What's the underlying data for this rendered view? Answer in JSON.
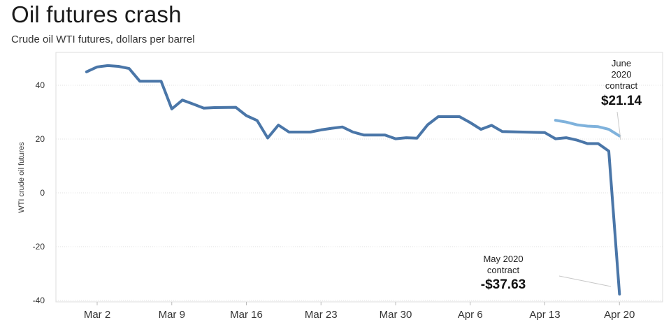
{
  "chart_data": {
    "type": "line",
    "title": "Oil futures crash",
    "subtitle": "Crude oil WTI futures, dollars per barrel",
    "ylabel": "WTI crude oil futures",
    "xlabel": "",
    "ylim": [
      -42,
      50
    ],
    "yticks": [
      40,
      20,
      0,
      -20,
      -40
    ],
    "grid": true,
    "legend": "none",
    "x_ticks": [
      {
        "label": "Mar 2",
        "day": 0
      },
      {
        "label": "Mar 9",
        "day": 7
      },
      {
        "label": "Mar 16",
        "day": 14
      },
      {
        "label": "Mar 23",
        "day": 21
      },
      {
        "label": "Mar 30",
        "day": 28
      },
      {
        "label": "Apr 6",
        "day": 35
      },
      {
        "label": "Apr 13",
        "day": 42
      },
      {
        "label": "Apr 20",
        "day": 49
      }
    ],
    "series": [
      {
        "name": "May 2020 contract",
        "color": "#4a76a8",
        "points": [
          {
            "x": "Mar 1",
            "y": 45.0
          },
          {
            "x": "Mar 2",
            "y": 46.8
          },
          {
            "x": "Mar 3",
            "y": 47.3
          },
          {
            "x": "Mar 4",
            "y": 47.0
          },
          {
            "x": "Mar 5",
            "y": 46.2
          },
          {
            "x": "Mar 6",
            "y": 41.5
          },
          {
            "x": "Mar 8",
            "y": 41.5
          },
          {
            "x": "Mar 9",
            "y": 31.2
          },
          {
            "x": "Mar 10",
            "y": 34.5
          },
          {
            "x": "Mar 11",
            "y": 33.0
          },
          {
            "x": "Mar 12",
            "y": 31.5
          },
          {
            "x": "Mar 13",
            "y": 31.7
          },
          {
            "x": "Mar 15",
            "y": 31.8
          },
          {
            "x": "Mar 16",
            "y": 28.7
          },
          {
            "x": "Mar 17",
            "y": 26.9
          },
          {
            "x": "Mar 18",
            "y": 20.4
          },
          {
            "x": "Mar 19",
            "y": 25.2
          },
          {
            "x": "Mar 20",
            "y": 22.6
          },
          {
            "x": "Mar 22",
            "y": 22.6
          },
          {
            "x": "Mar 23",
            "y": 23.4
          },
          {
            "x": "Mar 24",
            "y": 24.0
          },
          {
            "x": "Mar 25",
            "y": 24.5
          },
          {
            "x": "Mar 26",
            "y": 22.6
          },
          {
            "x": "Mar 27",
            "y": 21.5
          },
          {
            "x": "Mar 29",
            "y": 21.5
          },
          {
            "x": "Mar 30",
            "y": 20.1
          },
          {
            "x": "Mar 31",
            "y": 20.5
          },
          {
            "x": "Apr 1",
            "y": 20.3
          },
          {
            "x": "Apr 2",
            "y": 25.3
          },
          {
            "x": "Apr 3",
            "y": 28.3
          },
          {
            "x": "Apr 5",
            "y": 28.3
          },
          {
            "x": "Apr 6",
            "y": 26.1
          },
          {
            "x": "Apr 7",
            "y": 23.6
          },
          {
            "x": "Apr 8",
            "y": 25.1
          },
          {
            "x": "Apr 9",
            "y": 22.8
          },
          {
            "x": "Apr 13",
            "y": 22.4
          },
          {
            "x": "Apr 14",
            "y": 20.1
          },
          {
            "x": "Apr 15",
            "y": 20.5
          },
          {
            "x": "Apr 16",
            "y": 19.6
          },
          {
            "x": "Apr 17",
            "y": 18.3
          },
          {
            "x": "Apr 18",
            "y": 18.3
          },
          {
            "x": "Apr 19",
            "y": 15.5
          },
          {
            "x": "Apr 20",
            "y": -37.63
          }
        ]
      },
      {
        "name": "June 2020 contract",
        "color": "#7fb2dc",
        "points": [
          {
            "x": "Apr 14",
            "y": 27.0
          },
          {
            "x": "Apr 15",
            "y": 26.3
          },
          {
            "x": "Apr 16",
            "y": 25.3
          },
          {
            "x": "Apr 17",
            "y": 24.8
          },
          {
            "x": "Apr 18",
            "y": 24.6
          },
          {
            "x": "Apr 19",
            "y": 23.6
          },
          {
            "x": "Apr 20",
            "y": 21.14
          }
        ]
      }
    ],
    "annotations": [
      {
        "lines": [
          "May 2020",
          "contract"
        ],
        "value": "-$37.63",
        "series": "May 2020 contract"
      },
      {
        "lines": [
          "June",
          "2020",
          "contract"
        ],
        "value": "$21.14",
        "series": "June 2020 contract"
      }
    ]
  }
}
